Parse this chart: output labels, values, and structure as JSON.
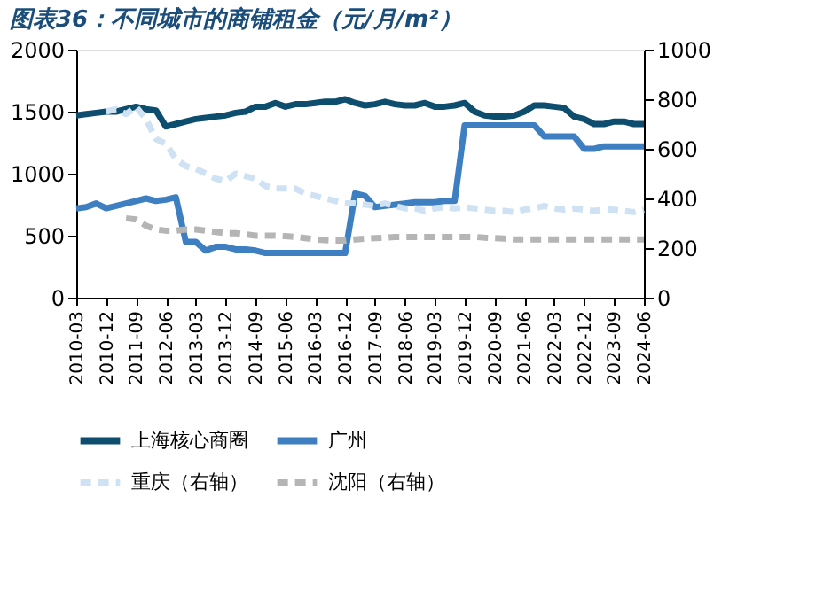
{
  "chart_data": {
    "type": "line",
    "title": "图表36：不同城市的商铺租金（元/月/m²）",
    "categories": [
      "2010-03",
      null,
      null,
      "2010-12",
      null,
      null,
      "2011-09",
      null,
      null,
      "2012-06",
      null,
      null,
      "2013-03",
      null,
      null,
      "2013-12",
      null,
      null,
      "2014-09",
      null,
      null,
      "2015-06",
      null,
      null,
      "2016-03",
      null,
      null,
      "2016-12",
      null,
      null,
      "2017-09",
      null,
      null,
      "2018-06",
      null,
      null,
      "2019-03",
      null,
      null,
      "2019-12",
      null,
      null,
      "2020-09",
      null,
      null,
      "2021-06",
      null,
      null,
      "2022-03",
      null,
      null,
      "2022-12",
      null,
      null,
      "2023-09",
      null,
      null,
      "2024-06"
    ],
    "series": [
      {
        "name": "上海核心商圈",
        "color": "#0d4d6e",
        "line_style": "solid",
        "values": [
          1470,
          1480,
          1490,
          1500,
          1500,
          1520,
          1540,
          1520,
          1510,
          1380,
          1400,
          1420,
          1440,
          1450,
          1460,
          1470,
          1490,
          1500,
          1540,
          1540,
          1570,
          1540,
          1560,
          1560,
          1570,
          1580,
          1580,
          1600,
          1570,
          1550,
          1560,
          1580,
          1560,
          1550,
          1550,
          1570,
          1540,
          1540,
          1550,
          1570,
          1500,
          1470,
          1460,
          1460,
          1470,
          1500,
          1550,
          1550,
          1540,
          1530,
          1460,
          1440,
          1400,
          1400,
          1420,
          1420,
          1400,
          1400
        ]
      },
      {
        "name": "广州",
        "color": "#3d7fc1",
        "line_style": "solid",
        "values": [
          720,
          730,
          760,
          720,
          740,
          760,
          780,
          800,
          780,
          790,
          810,
          450,
          450,
          380,
          410,
          410,
          390,
          390,
          380,
          360,
          360,
          360,
          360,
          360,
          360,
          360,
          360,
          360,
          840,
          820,
          730,
          740,
          750,
          760,
          770,
          770,
          770,
          780,
          780,
          1390,
          1390,
          1390,
          1390,
          1390,
          1390,
          1390,
          1390,
          1300,
          1300,
          1300,
          1300,
          1200,
          1200,
          1220,
          1220,
          1220,
          1220,
          1220
        ]
      },
      {
        "name": "重庆（右轴）",
        "color": "#cfe2f3",
        "line_style": "dashed",
        "axis": "y2",
        "values": [
          null,
          null,
          null,
          750,
          760,
          740,
          770,
          720,
          640,
          620,
          560,
          530,
          520,
          500,
          480,
          470,
          500,
          490,
          480,
          450,
          440,
          440,
          440,
          420,
          410,
          400,
          390,
          380,
          380,
          375,
          370,
          380,
          370,
          360,
          360,
          350,
          360,
          365,
          360,
          365,
          360,
          355,
          350,
          350,
          345,
          355,
          360,
          370,
          360,
          355,
          360,
          355,
          350,
          355,
          355,
          350,
          345,
          355
        ]
      },
      {
        "name": "沈阳（右轴）",
        "color": "#b5b5b5",
        "line_style": "dashed",
        "axis": "y2",
        "values": [
          null,
          null,
          null,
          null,
          null,
          320,
          315,
          290,
          275,
          270,
          270,
          275,
          275,
          270,
          265,
          260,
          260,
          255,
          250,
          250,
          250,
          248,
          245,
          240,
          235,
          232,
          230,
          230,
          235,
          238,
          240,
          242,
          245,
          245,
          245,
          245,
          245,
          245,
          245,
          245,
          245,
          242,
          240,
          238,
          235,
          235,
          235,
          235,
          235,
          235,
          235,
          235,
          235,
          235,
          235,
          235,
          235,
          235
        ]
      }
    ],
    "ylim": [
      0,
      2000
    ],
    "yticks": [
      0,
      500,
      1000,
      1500,
      2000
    ],
    "y2lim": [
      0,
      1000
    ],
    "y2ticks": [
      0,
      200,
      400,
      600,
      800,
      1000
    ],
    "grid": false,
    "legend": "bottom",
    "marker": "none"
  }
}
